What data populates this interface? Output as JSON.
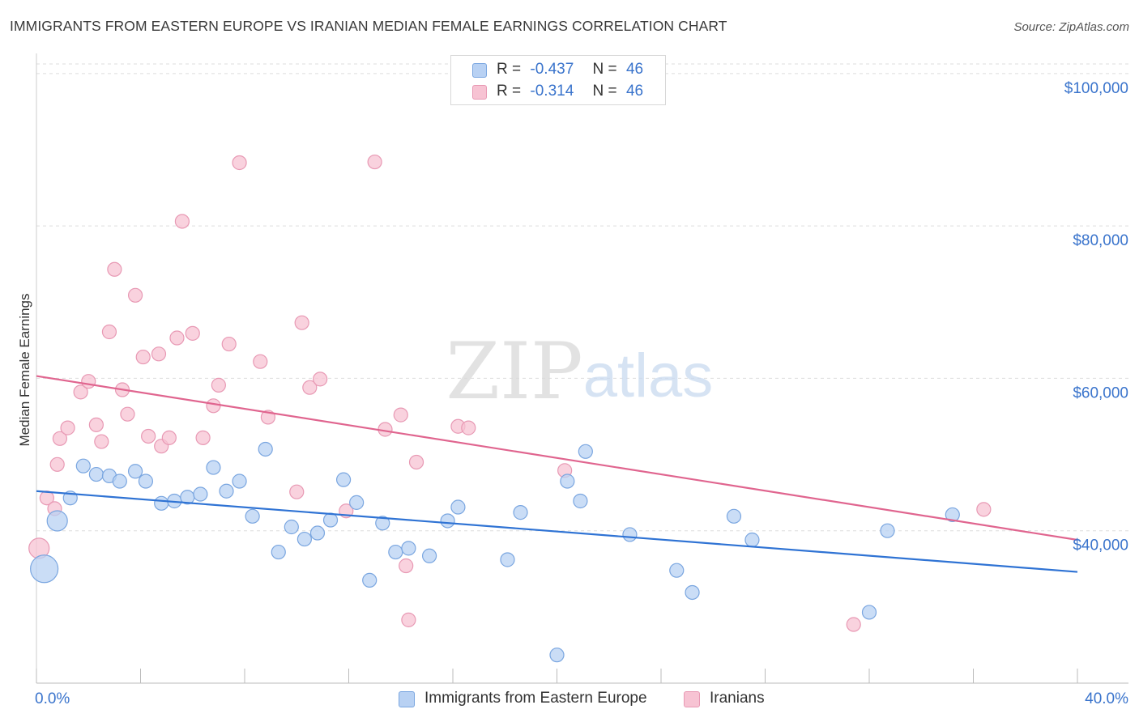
{
  "title": "IMMIGRANTS FROM EASTERN EUROPE VS IRANIAN MEDIAN FEMALE EARNINGS CORRELATION CHART",
  "source": "Source: ZipAtlas.com",
  "watermark": {
    "zip": "ZIP",
    "atlas": "atlas"
  },
  "legend_stats": [
    {
      "r_label": "R =",
      "r_value": "-0.437",
      "n_label": "N =",
      "n_value": "46"
    },
    {
      "r_label": "R =",
      "r_value": "-0.314",
      "n_label": "N =",
      "n_value": "46"
    }
  ],
  "colors": {
    "blue_fill": "#b8d1f3",
    "blue_stroke": "#7aa6e0",
    "blue_line": "#2f73d4",
    "pink_fill": "#f7c3d3",
    "pink_stroke": "#e899b4",
    "pink_line": "#e0658f",
    "axis_label": "#3a74cc",
    "grid": "#dddddd"
  },
  "chart_data": {
    "type": "scatter",
    "ylabel": "Median Female Earnings",
    "x_tick_labels": [
      "0.0%",
      "40.0%"
    ],
    "y_ticks": [
      {
        "value": 40000,
        "label": "$40,000"
      },
      {
        "value": 60000,
        "label": "$60,000"
      },
      {
        "value": 80000,
        "label": "$80,000"
      },
      {
        "value": 100000,
        "label": "$100,000"
      }
    ],
    "xlim": [
      0,
      40
    ],
    "ylim": [
      20000,
      102000
    ],
    "grid": true,
    "series": [
      {
        "name": "Immigrants from Eastern Europe",
        "color": "blue",
        "trend": {
          "x": [
            0,
            40
          ],
          "y": [
            45200,
            34600
          ]
        },
        "points": [
          [
            0.3,
            35000,
            3
          ],
          [
            0.8,
            41300,
            2
          ],
          [
            1.3,
            44300,
            1
          ],
          [
            1.8,
            48500,
            1
          ],
          [
            2.3,
            47400,
            1
          ],
          [
            2.8,
            47200,
            1
          ],
          [
            3.2,
            46500,
            1
          ],
          [
            3.8,
            47800,
            1
          ],
          [
            4.2,
            46500,
            1
          ],
          [
            4.8,
            43600,
            1
          ],
          [
            5.3,
            43900,
            1
          ],
          [
            5.8,
            44400,
            1
          ],
          [
            6.3,
            44800,
            1
          ],
          [
            6.8,
            48300,
            1
          ],
          [
            7.3,
            45200,
            1
          ],
          [
            7.8,
            46500,
            1
          ],
          [
            8.3,
            41900,
            1
          ],
          [
            8.8,
            50700,
            1
          ],
          [
            9.3,
            37200,
            1
          ],
          [
            9.8,
            40500,
            1
          ],
          [
            10.3,
            38900,
            1
          ],
          [
            10.8,
            39700,
            1
          ],
          [
            11.3,
            41400,
            1
          ],
          [
            11.8,
            46700,
            1
          ],
          [
            12.3,
            43700,
            1
          ],
          [
            12.8,
            33500,
            1
          ],
          [
            13.3,
            41000,
            1
          ],
          [
            13.8,
            37200,
            1
          ],
          [
            14.3,
            37700,
            1
          ],
          [
            15.1,
            36700,
            1
          ],
          [
            15.8,
            41300,
            1
          ],
          [
            16.2,
            43100,
            1
          ],
          [
            18.1,
            36200,
            1
          ],
          [
            18.6,
            42400,
            1
          ],
          [
            20.0,
            23700,
            1
          ],
          [
            20.4,
            46500,
            1
          ],
          [
            20.9,
            43900,
            1
          ],
          [
            21.1,
            50400,
            1
          ],
          [
            22.8,
            39500,
            1
          ],
          [
            24.6,
            34800,
            1
          ],
          [
            25.2,
            31900,
            1
          ],
          [
            26.8,
            41900,
            1
          ],
          [
            27.5,
            38800,
            1
          ],
          [
            32.0,
            29300,
            1
          ],
          [
            32.7,
            40000,
            1
          ],
          [
            35.2,
            42100,
            1
          ]
        ]
      },
      {
        "name": "Iranians",
        "color": "pink",
        "trend": {
          "x": [
            0,
            40
          ],
          "y": [
            60300,
            38800
          ]
        },
        "points": [
          [
            0.1,
            37700,
            2
          ],
          [
            0.4,
            44300,
            1
          ],
          [
            0.7,
            42900,
            1
          ],
          [
            0.8,
            48700,
            1
          ],
          [
            0.9,
            52100,
            1
          ],
          [
            1.2,
            53500,
            1
          ],
          [
            1.7,
            58200,
            1
          ],
          [
            2.0,
            59600,
            1
          ],
          [
            2.3,
            53900,
            1
          ],
          [
            2.5,
            51700,
            1
          ],
          [
            2.8,
            66100,
            1
          ],
          [
            3.0,
            74300,
            1
          ],
          [
            3.3,
            58500,
            1
          ],
          [
            3.5,
            55300,
            1
          ],
          [
            3.8,
            70900,
            1
          ],
          [
            4.1,
            62800,
            1
          ],
          [
            4.3,
            52400,
            1
          ],
          [
            4.7,
            63200,
            1
          ],
          [
            4.8,
            51100,
            1
          ],
          [
            5.1,
            52200,
            1
          ],
          [
            5.4,
            65300,
            1
          ],
          [
            5.6,
            80600,
            1
          ],
          [
            6.0,
            65900,
            1
          ],
          [
            6.4,
            52200,
            1
          ],
          [
            6.8,
            56400,
            1
          ],
          [
            7.0,
            59100,
            1
          ],
          [
            7.4,
            64500,
            1
          ],
          [
            7.8,
            88300,
            1
          ],
          [
            8.6,
            62200,
            1
          ],
          [
            8.9,
            54900,
            1
          ],
          [
            10.0,
            45100,
            1
          ],
          [
            10.2,
            67300,
            1
          ],
          [
            10.5,
            58800,
            1
          ],
          [
            10.9,
            59900,
            1
          ],
          [
            11.9,
            42600,
            1
          ],
          [
            13.0,
            88400,
            1
          ],
          [
            13.4,
            53300,
            1
          ],
          [
            14.0,
            55200,
            1
          ],
          [
            14.2,
            35400,
            1
          ],
          [
            14.3,
            28300,
            1
          ],
          [
            14.6,
            49000,
            1
          ],
          [
            16.2,
            53700,
            1
          ],
          [
            16.6,
            53500,
            1
          ],
          [
            20.3,
            47900,
            1
          ],
          [
            31.4,
            27700,
            1
          ],
          [
            36.4,
            42800,
            1
          ]
        ]
      }
    ]
  }
}
